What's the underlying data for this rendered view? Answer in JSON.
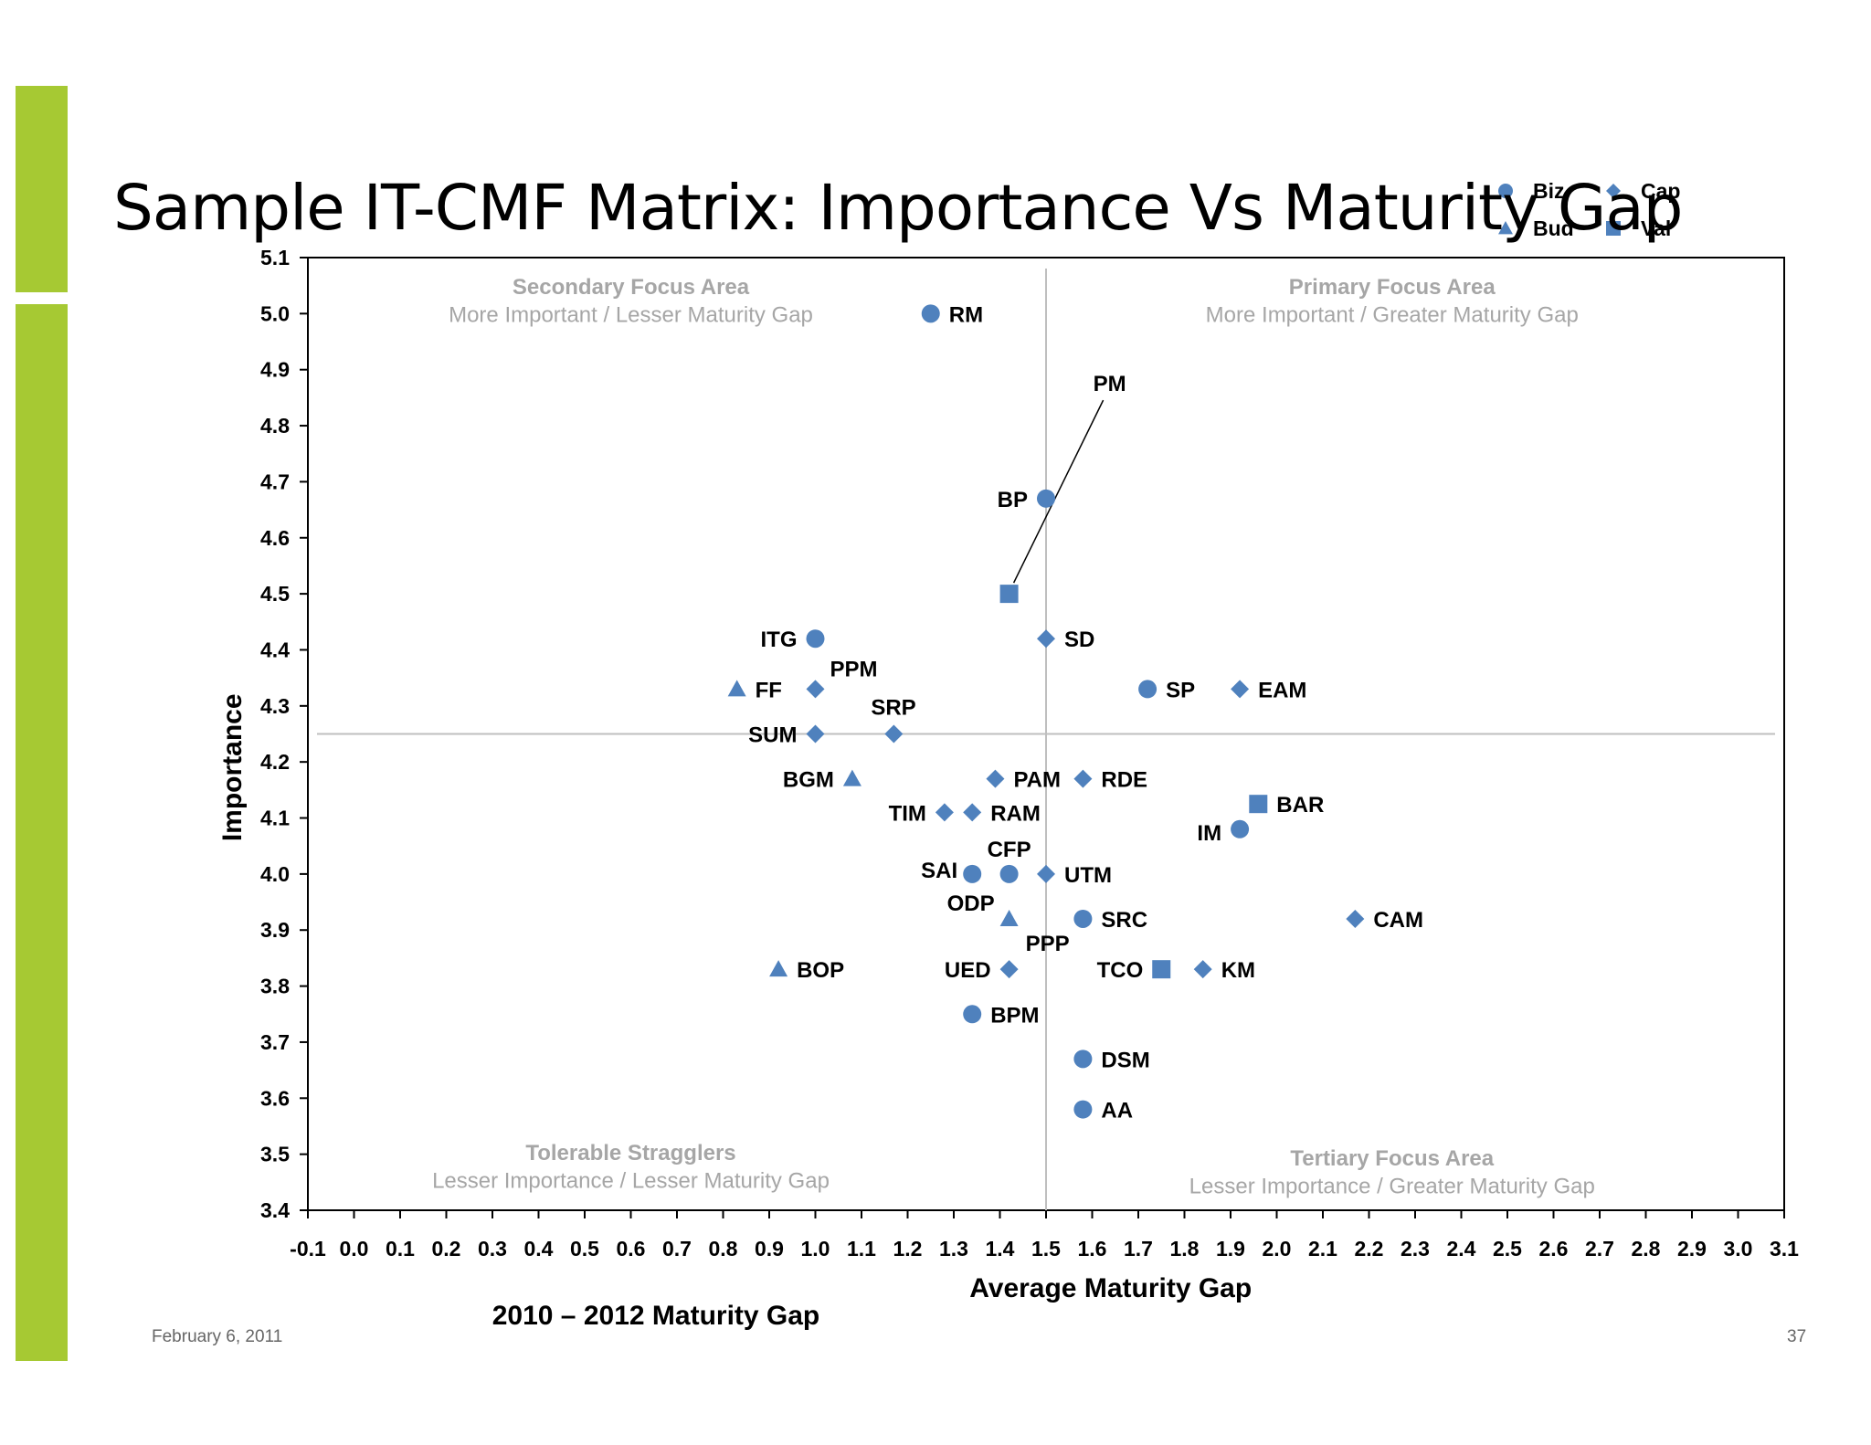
{
  "slide": {
    "title": "Sample IT-CMF Matrix: Importance Vs Maturity Gap",
    "date": "February 6, 2011",
    "page_number": "37",
    "subtitle_label": "2010 – 2012 Maturity Gap"
  },
  "colors": {
    "accent_bar": "#a6c933",
    "marker": "#4f81bd",
    "quadrant_text": "#a6a6a6"
  },
  "chart_data": {
    "type": "scatter",
    "xlabel": "Average Maturity Gap",
    "ylabel": "Importance",
    "xlim": [
      -0.1,
      3.1
    ],
    "ylim": [
      3.4,
      5.1
    ],
    "x_ticks": [
      "-0.1",
      "0.0",
      "0.1",
      "0.2",
      "0.3",
      "0.4",
      "0.5",
      "0.6",
      "0.7",
      "0.8",
      "0.9",
      "1.0",
      "1.1",
      "1.2",
      "1.3",
      "1.4",
      "1.5",
      "1.6",
      "1.7",
      "1.8",
      "1.9",
      "2.0",
      "2.1",
      "2.2",
      "2.3",
      "2.4",
      "2.5",
      "2.6",
      "2.7",
      "2.8",
      "2.9",
      "3.0",
      "3.1"
    ],
    "y_ticks": [
      "3.4",
      "3.5",
      "3.6",
      "3.7",
      "3.8",
      "3.9",
      "4.0",
      "4.1",
      "4.2",
      "4.3",
      "4.4",
      "4.5",
      "4.6",
      "4.7",
      "4.8",
      "4.9",
      "5.0",
      "5.1"
    ],
    "reference_lines": {
      "x": 1.5,
      "y": 4.25
    },
    "grid": false,
    "legend_position": "top-right",
    "series": [
      {
        "name": "Biz",
        "marker": "circle"
      },
      {
        "name": "Cap",
        "marker": "diamond"
      },
      {
        "name": "Bud",
        "marker": "triangle"
      },
      {
        "name": "Val",
        "marker": "square"
      }
    ],
    "points": [
      {
        "label": "RM",
        "series": "Biz",
        "x": 1.25,
        "y": 5.0
      },
      {
        "label": "BP",
        "series": "Biz",
        "x": 1.5,
        "y": 4.67
      },
      {
        "label": "PM",
        "series": "Val",
        "x": 1.42,
        "y": 4.5
      },
      {
        "label": "ITG",
        "series": "Biz",
        "x": 1.0,
        "y": 4.42
      },
      {
        "label": "SD",
        "series": "Cap",
        "x": 1.5,
        "y": 4.42
      },
      {
        "label": "FF",
        "series": "Bud",
        "x": 0.83,
        "y": 4.33
      },
      {
        "label": "PPM",
        "series": "Cap",
        "x": 1.0,
        "y": 4.33
      },
      {
        "label": "SP",
        "series": "Biz",
        "x": 1.72,
        "y": 4.33
      },
      {
        "label": "EAM",
        "series": "Cap",
        "x": 1.92,
        "y": 4.33
      },
      {
        "label": "SUM",
        "series": "Cap",
        "x": 1.0,
        "y": 4.25
      },
      {
        "label": "SRP",
        "series": "Cap",
        "x": 1.17,
        "y": 4.25
      },
      {
        "label": "BGM",
        "series": "Bud",
        "x": 1.08,
        "y": 4.17
      },
      {
        "label": "PAM",
        "series": "Cap",
        "x": 1.39,
        "y": 4.17
      },
      {
        "label": "RDE",
        "series": "Cap",
        "x": 1.58,
        "y": 4.17
      },
      {
        "label": "BAR",
        "series": "Val",
        "x": 1.96,
        "y": 4.125
      },
      {
        "label": "TIM",
        "series": "Cap",
        "x": 1.28,
        "y": 4.11
      },
      {
        "label": "RAM",
        "series": "Cap",
        "x": 1.34,
        "y": 4.11
      },
      {
        "label": "IM",
        "series": "Biz",
        "x": 1.92,
        "y": 4.08
      },
      {
        "label": "SAI",
        "series": "Biz",
        "x": 1.34,
        "y": 4.0
      },
      {
        "label": "CFP",
        "series": "Biz",
        "x": 1.42,
        "y": 4.0
      },
      {
        "label": "UTM",
        "series": "Cap",
        "x": 1.5,
        "y": 4.0
      },
      {
        "label": "ODP",
        "series": "Bud",
        "x": 1.42,
        "y": 3.92
      },
      {
        "label": "SRC",
        "series": "Biz",
        "x": 1.58,
        "y": 3.92
      },
      {
        "label": "CAM",
        "series": "Cap",
        "x": 2.17,
        "y": 3.92
      },
      {
        "label": "BOP",
        "series": "Bud",
        "x": 0.92,
        "y": 3.83
      },
      {
        "label": "UED",
        "series": "Cap",
        "x": 1.42,
        "y": 3.83
      },
      {
        "label": "PPP",
        "series": "Cap",
        "x": 1.42,
        "y": 3.83
      },
      {
        "label": "TCO",
        "series": "Val",
        "x": 1.75,
        "y": 3.83
      },
      {
        "label": "KM",
        "series": "Cap",
        "x": 1.84,
        "y": 3.83
      },
      {
        "label": "BPM",
        "series": "Biz",
        "x": 1.34,
        "y": 3.75
      },
      {
        "label": "DSM",
        "series": "Biz",
        "x": 1.58,
        "y": 3.67
      },
      {
        "label": "AA",
        "series": "Biz",
        "x": 1.58,
        "y": 3.58
      }
    ],
    "quadrants": [
      {
        "title": "Secondary Focus Area",
        "subtitle": "More Important / Lesser Maturity Gap",
        "position": "top-left"
      },
      {
        "title": "Primary Focus Area",
        "subtitle": "More Important / Greater Maturity Gap",
        "position": "top-right"
      },
      {
        "title": "Tolerable Stragglers",
        "subtitle": "Lesser Importance / Lesser Maturity Gap",
        "position": "bottom-left"
      },
      {
        "title": "Tertiary Focus Area",
        "subtitle": "Lesser Importance / Greater Maturity Gap",
        "position": "bottom-right"
      }
    ]
  }
}
